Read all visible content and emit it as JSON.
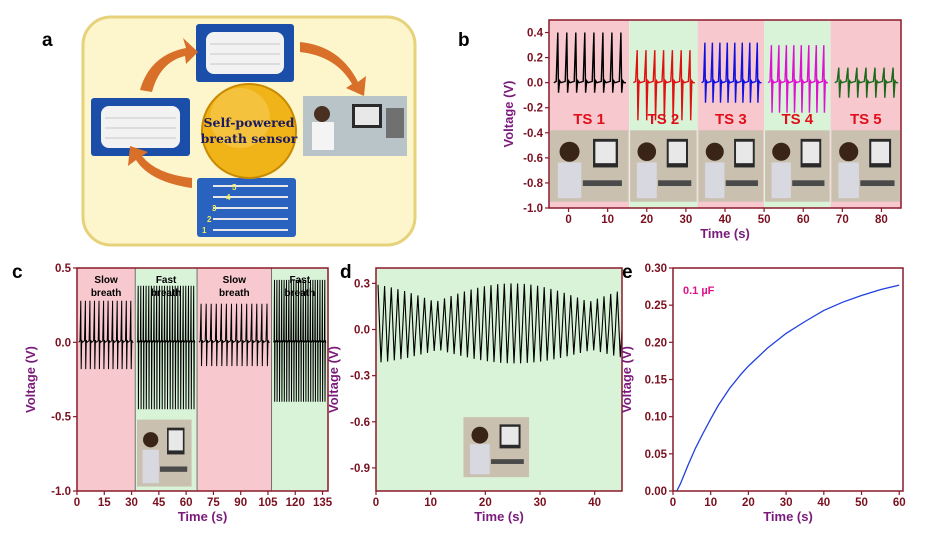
{
  "figure": {
    "panel_labels": [
      "a",
      "b",
      "c",
      "d",
      "e"
    ],
    "schematic": {
      "center_label_line1": "Self-powered",
      "center_label_line2": "breath sensor",
      "strip_numbers": [
        "1",
        "2",
        "3",
        "4",
        "5"
      ],
      "colors": {
        "background": "#fdf6cc",
        "border": "#e6d27a",
        "tile": "#1a4ea8",
        "arrow": "#d9702a",
        "center": "#f0b418"
      }
    }
  },
  "chart_data": [
    {
      "panel": "b",
      "type": "line",
      "xlabel": "Time (s)",
      "ylabel": "Voltage (V)",
      "xlim": [
        -5,
        85
      ],
      "ylim": [
        -1.0,
        0.5
      ],
      "xticks": [
        0,
        10,
        20,
        30,
        40,
        50,
        60,
        70,
        80
      ],
      "yticks": [
        -1.0,
        -0.8,
        -0.6,
        -0.4,
        -0.2,
        0.0,
        0.2,
        0.4
      ],
      "segments": [
        {
          "name": "TS 1",
          "x_range": [
            -5,
            15.5
          ],
          "bg": "#f8c8cf",
          "color": "#000000",
          "peaks": 8,
          "amp_up": 0.4,
          "amp_down": 0.08
        },
        {
          "name": "TS 2",
          "x_range": [
            15.5,
            33
          ],
          "bg": "#d8f3d8",
          "color": "#e01010",
          "peaks": 7,
          "amp_up": 0.26,
          "amp_down": 0.3
        },
        {
          "name": "TS 3",
          "x_range": [
            33,
            50
          ],
          "bg": "#f8c8cf",
          "color": "#1010e0",
          "peaks": 8,
          "amp_up": 0.32,
          "amp_down": 0.16
        },
        {
          "name": "TS 4",
          "x_range": [
            50,
            67
          ],
          "bg": "#d8f3d8",
          "color": "#e010d0",
          "peaks": 8,
          "amp_up": 0.3,
          "amp_down": 0.24
        },
        {
          "name": "TS 5",
          "x_range": [
            67,
            85
          ],
          "bg": "#f8c8cf",
          "color": "#1a6a1a",
          "peaks": 7,
          "amp_up": 0.12,
          "amp_down": 0.12
        }
      ]
    },
    {
      "panel": "c",
      "type": "line",
      "xlabel": "Time (s)",
      "ylabel": "Voltage (V)",
      "xlim": [
        0,
        138
      ],
      "ylim": [
        -1.0,
        0.5
      ],
      "xticks": [
        0,
        15,
        30,
        45,
        60,
        75,
        90,
        105,
        120,
        135
      ],
      "yticks": [
        -1.0,
        -0.5,
        0.0,
        0.5
      ],
      "ytick_labels": [
        "-1.0",
        "-0.5",
        "0.0",
        "0.5"
      ],
      "color": "#000000",
      "regions": [
        {
          "label_line1": "Slow",
          "label_line2": "breath",
          "x_range": [
            0,
            32
          ],
          "bg": "#f8c8cf",
          "peaks": 12,
          "amp_up": 0.28,
          "amp_down": 0.18
        },
        {
          "label_line1": "Fast",
          "label_line2": "breath",
          "x_range": [
            32,
            66
          ],
          "bg": "#d8f3d8",
          "peaks": 22,
          "amp_up": 0.38,
          "amp_down": 0.45
        },
        {
          "label_line1": "Slow",
          "label_line2": "breath",
          "x_range": [
            66,
            107
          ],
          "bg": "#f8c8cf",
          "peaks": 14,
          "amp_up": 0.26,
          "amp_down": 0.16
        },
        {
          "label_line1": "Fast",
          "label_line2": "breath",
          "x_range": [
            107,
            138
          ],
          "bg": "#d8f3d8",
          "peaks": 22,
          "amp_up": 0.42,
          "amp_down": 0.4
        }
      ]
    },
    {
      "panel": "d",
      "type": "line",
      "xlabel": "Time (s)",
      "ylabel": "Voltage (V)",
      "xlim": [
        0,
        45
      ],
      "ylim": [
        -1.05,
        0.4
      ],
      "xticks": [
        0,
        10,
        20,
        30,
        40
      ],
      "yticks": [
        -0.9,
        -0.6,
        -0.3,
        0.0,
        0.3
      ],
      "ytick_labels": [
        "-0.9",
        "-0.6",
        "-0.3",
        "0.0",
        "0.3"
      ],
      "color": "#000000",
      "bg": "#d8f3d8",
      "cycles": 37,
      "amp_max": 0.3,
      "amp_min": -0.22
    },
    {
      "panel": "e",
      "type": "line",
      "xlabel": "Time (s)",
      "ylabel": "Voltage (V)",
      "annotation": "0.1 µF",
      "xlim": [
        0,
        61
      ],
      "ylim": [
        0,
        0.3
      ],
      "xticks": [
        0,
        10,
        20,
        30,
        40,
        50,
        60
      ],
      "yticks": [
        0.0,
        0.05,
        0.1,
        0.15,
        0.2,
        0.25,
        0.3
      ],
      "color": "#2040e0",
      "x": [
        1,
        2,
        4,
        6,
        8,
        10,
        12,
        15,
        18,
        20,
        25,
        30,
        35,
        40,
        45,
        50,
        55,
        60
      ],
      "y": [
        0.0,
        0.01,
        0.035,
        0.058,
        0.078,
        0.097,
        0.115,
        0.138,
        0.157,
        0.168,
        0.192,
        0.212,
        0.228,
        0.243,
        0.254,
        0.263,
        0.271,
        0.277
      ]
    }
  ]
}
